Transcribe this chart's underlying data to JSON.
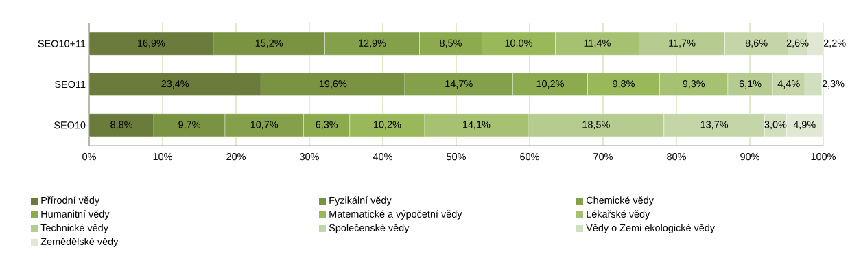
{
  "chart_data": {
    "type": "bar",
    "orientation": "horizontal",
    "stacked": true,
    "categories": [
      "SEO10+11",
      "SEO11",
      "SEO10"
    ],
    "xlim": [
      0,
      100
    ],
    "xticks": [
      {
        "value": 0,
        "label": "0%"
      },
      {
        "value": 10,
        "label": "10%"
      },
      {
        "value": 20,
        "label": "20%"
      },
      {
        "value": 30,
        "label": "30%"
      },
      {
        "value": 40,
        "label": "40%"
      },
      {
        "value": 50,
        "label": "50%"
      },
      {
        "value": 60,
        "label": "60%"
      },
      {
        "value": 70,
        "label": "70%"
      },
      {
        "value": 80,
        "label": "80%"
      },
      {
        "value": 90,
        "label": "90%"
      },
      {
        "value": 100,
        "label": "100%"
      }
    ],
    "grid": "x",
    "legend": "bottom",
    "series": [
      {
        "name": "Přírodní vědy",
        "color": "#6a7b3b",
        "values": [
          16.9,
          23.4,
          8.8
        ],
        "value_labels": [
          "16,9%",
          "23,4%",
          "8,8%"
        ]
      },
      {
        "name": "Fyzikální vědy",
        "color": "#7a9343",
        "values": [
          15.2,
          19.6,
          9.7
        ],
        "value_labels": [
          "15,2%",
          "19,6%",
          "9,7%"
        ]
      },
      {
        "name": "Chemické vědy",
        "color": "#84a04a",
        "values": [
          12.9,
          14.7,
          10.7
        ],
        "value_labels": [
          "12,9%",
          "14,7%",
          "10,7%"
        ]
      },
      {
        "name": "Humanitní vědy",
        "color": "#8cab4e",
        "values": [
          8.5,
          10.2,
          6.3
        ],
        "value_labels": [
          "8,5%",
          "10,2%",
          "6,3%"
        ]
      },
      {
        "name": "Matematické a výpočetní vědy",
        "color": "#98b85a",
        "values": [
          10.0,
          9.8,
          10.2
        ],
        "value_labels": [
          "10,0%",
          "9,8%",
          "10,2%"
        ]
      },
      {
        "name": "Lékařské vědy",
        "color": "#a6c172",
        "values": [
          11.4,
          9.3,
          14.1
        ],
        "value_labels": [
          "11,4%",
          "9,3%",
          "14,1%"
        ]
      },
      {
        "name": "Technické vědy",
        "color": "#b5cb8f",
        "values": [
          11.7,
          6.1,
          18.5
        ],
        "value_labels": [
          "11,7%",
          "6,1%",
          "18,5%"
        ]
      },
      {
        "name": "Společenské vědy",
        "color": "#c4d6a8",
        "values": [
          8.6,
          4.4,
          13.7
        ],
        "value_labels": [
          "8,6%",
          "4,4%",
          "13,7%"
        ]
      },
      {
        "name": "Vědy o Zemi ekologické vědy",
        "color": "#d2dfbf",
        "values": [
          2.6,
          2.3,
          3.0
        ],
        "value_labels": [
          "2,6%",
          "2,3%",
          "3,0%"
        ]
      },
      {
        "name": "Zemědělské vědy",
        "color": "#e0e8d4",
        "values": [
          2.2,
          null,
          4.9
        ],
        "value_labels": [
          "2,2%",
          null,
          "4,9%"
        ]
      }
    ]
  }
}
